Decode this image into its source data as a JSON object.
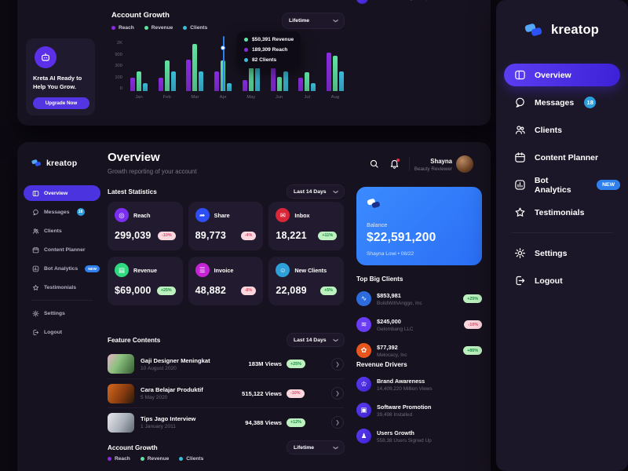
{
  "brand": "kreatop",
  "colors": {
    "accent_purple": "#5134e6",
    "active_nav": "#4c33e0",
    "balance_blue": "#2e7ff7",
    "badge_up_bg": "#bdf2c0",
    "badge_up_text": "#1d8f45",
    "badge_down_bg": "#fbd7de",
    "badge_down_text": "#e8476b",
    "messages_badge_blue": "#2d9cdb",
    "new_badge_blue": "#2f80ed"
  },
  "nav": {
    "items": [
      {
        "label": "Overview",
        "active": true
      },
      {
        "label": "Messages",
        "badge": "18"
      },
      {
        "label": "Clients"
      },
      {
        "label": "Content Planner"
      },
      {
        "label": "Bot Analytics",
        "badge": "NEW"
      },
      {
        "label": "Testimonials"
      },
      {
        "label": "Settings"
      },
      {
        "label": "Logout"
      }
    ]
  },
  "promo": {
    "title": "Kreta AI Ready to Help You Grow.",
    "button": "Upgrade Now"
  },
  "chart_data": {
    "type": "bar",
    "title": "Account Growth",
    "filter": "Lifetime",
    "categories": [
      "Jan",
      "Feb",
      "Mar",
      "Apr",
      "May",
      "Jun",
      "Jul",
      "Aug"
    ],
    "series": [
      {
        "name": "Reach",
        "color": "#8a2be2",
        "heights_pct": [
          27,
          27,
          64,
          41,
          23,
          49,
          27,
          79
        ]
      },
      {
        "name": "Revenue",
        "color": "#5fe3a1",
        "heights_pct": [
          40,
          63,
          96,
          63,
          49,
          29,
          38,
          73
        ]
      },
      {
        "name": "Clients",
        "color": "#38bcd8",
        "heights_pct": [
          16,
          41,
          41,
          16,
          49,
          41,
          16,
          40
        ]
      }
    ],
    "y_ticks": [
      "2K",
      "900",
      "300",
      "100",
      "0"
    ],
    "ylim": [
      0,
      2000
    ],
    "legend_position": "top-left",
    "tooltip": [
      {
        "color": "#5fe3a1",
        "text": "$50,391 Revenue"
      },
      {
        "color": "#8a2be2",
        "text": "189,309 Reach"
      },
      {
        "color": "#38bcd8",
        "text": "82 Clients"
      }
    ]
  },
  "header": {
    "title": "Overview",
    "subtitle": "Growth reporting of your account",
    "user_name": "Shayna",
    "user_role": "Beauty Reviewer"
  },
  "stats": {
    "title": "Latest Statistics",
    "filter": "Last 14 Days",
    "cards": [
      {
        "label": "Reach",
        "value": "299,039",
        "delta": "-10%",
        "color": "#7a2ff0",
        "icon": "◎"
      },
      {
        "label": "Share",
        "value": "89,773",
        "delta": "-4%",
        "color": "#2d4ef5",
        "icon": "➦"
      },
      {
        "label": "Inbox",
        "value": "18,221",
        "delta": "+11%",
        "color": "#d92638",
        "icon": "✉"
      },
      {
        "label": "Revenue",
        "value": "$69,000",
        "delta": "+25%",
        "color": "#2fd980",
        "icon": "▤"
      },
      {
        "label": "Invoice",
        "value": "48,882",
        "delta": "-8%",
        "color": "#c623d6",
        "icon": "☰"
      },
      {
        "label": "New Clients",
        "value": "22,089",
        "delta": "+5%",
        "color": "#2e9fd9",
        "icon": "☺"
      }
    ]
  },
  "features": {
    "title": "Feature Contents",
    "filter": "Last 14 Days",
    "rows": [
      {
        "title": "Gaji Designer Meningkat",
        "date": "10 August 2020",
        "views": "183M Views",
        "delta": "+25%"
      },
      {
        "title": "Cara Belajar Produktif",
        "date": "5 May 2020",
        "views": "515,122 Views",
        "delta": "-10%"
      },
      {
        "title": "Tips Jago Interview",
        "date": "1 January 2011",
        "views": "94,388 Views",
        "delta": "+12%"
      }
    ]
  },
  "growth_section": {
    "title": "Account Growth",
    "filter": "Lifetime",
    "legend": [
      "Reach",
      "Revenue",
      "Clients"
    ]
  },
  "balance": {
    "label": "Balance",
    "amount": "$22,591,200",
    "owner": "Shayna Lowi • 08/22"
  },
  "clients": {
    "title": "Top Big Clients",
    "rows": [
      {
        "value": "$853,981",
        "name": "BuildWithAnggo, Inc",
        "delta": "+25%",
        "color": "#2d6cdf",
        "glyph": "∿"
      },
      {
        "value": "$245,000",
        "name": "Gelombang LLC",
        "delta": "-10%",
        "color": "#6a3cf5",
        "glyph": "≋"
      },
      {
        "value": "$77,392",
        "name": "Melocacy, Inc",
        "delta": "+85%",
        "color": "#e8551d",
        "glyph": "✿"
      }
    ]
  },
  "drivers": {
    "title": "Revenue Drivers",
    "rows": [
      {
        "title": "Brand Awareness",
        "subtitle": "14,409,220 Million Views",
        "icon": "♔"
      },
      {
        "title": "Software Promotion",
        "subtitle": "39,498 Installed",
        "icon": "▣"
      },
      {
        "title": "Users Growth",
        "subtitle": "558,38 Users Signed Up",
        "icon": "♟"
      }
    ]
  },
  "top_fragment": {
    "subtitle": "558,38 Users Signed Up"
  }
}
